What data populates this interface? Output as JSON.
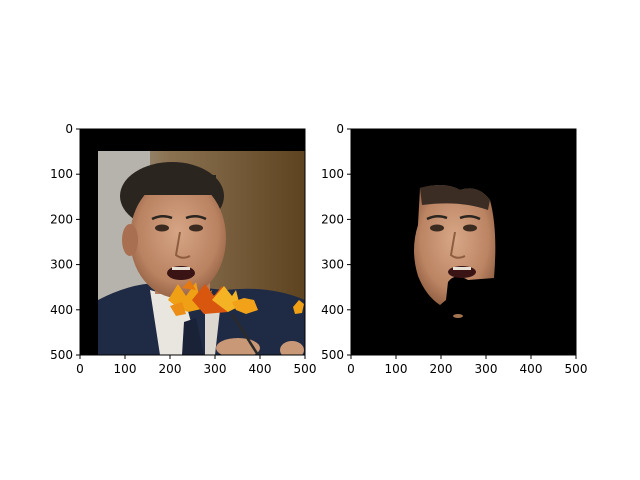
{
  "chart_data": [
    {
      "type": "image",
      "xlim": [
        0,
        500
      ],
      "ylim": [
        500,
        0
      ],
      "xticks": [
        0,
        100,
        200,
        300,
        400,
        500
      ],
      "yticks": [
        0,
        100,
        200,
        300,
        400,
        500
      ],
      "xtick_labels": [
        "0",
        "100",
        "200",
        "300",
        "400",
        "500"
      ],
      "ytick_labels": [
        "0",
        "100",
        "200",
        "300",
        "400",
        "500"
      ],
      "content": "photo-with-leaf-overlay",
      "colors": {
        "background": "#000000",
        "suit": "#1f2a44",
        "shirt": "#e9e6df",
        "wall": "#7c5a2e",
        "leaf": "#e88a14"
      }
    },
    {
      "type": "image",
      "xlim": [
        0,
        500
      ],
      "ylim": [
        500,
        0
      ],
      "xticks": [
        0,
        100,
        200,
        300,
        400,
        500
      ],
      "yticks": [
        0,
        100,
        200,
        300,
        400,
        500
      ],
      "xtick_labels": [
        "0",
        "100",
        "200",
        "300",
        "400",
        "500"
      ],
      "ytick_labels": [
        "0",
        "100",
        "200",
        "300",
        "400",
        "500"
      ],
      "content": "masked-face",
      "colors": {
        "background": "#000000",
        "skin": "#c08e6b"
      }
    }
  ]
}
